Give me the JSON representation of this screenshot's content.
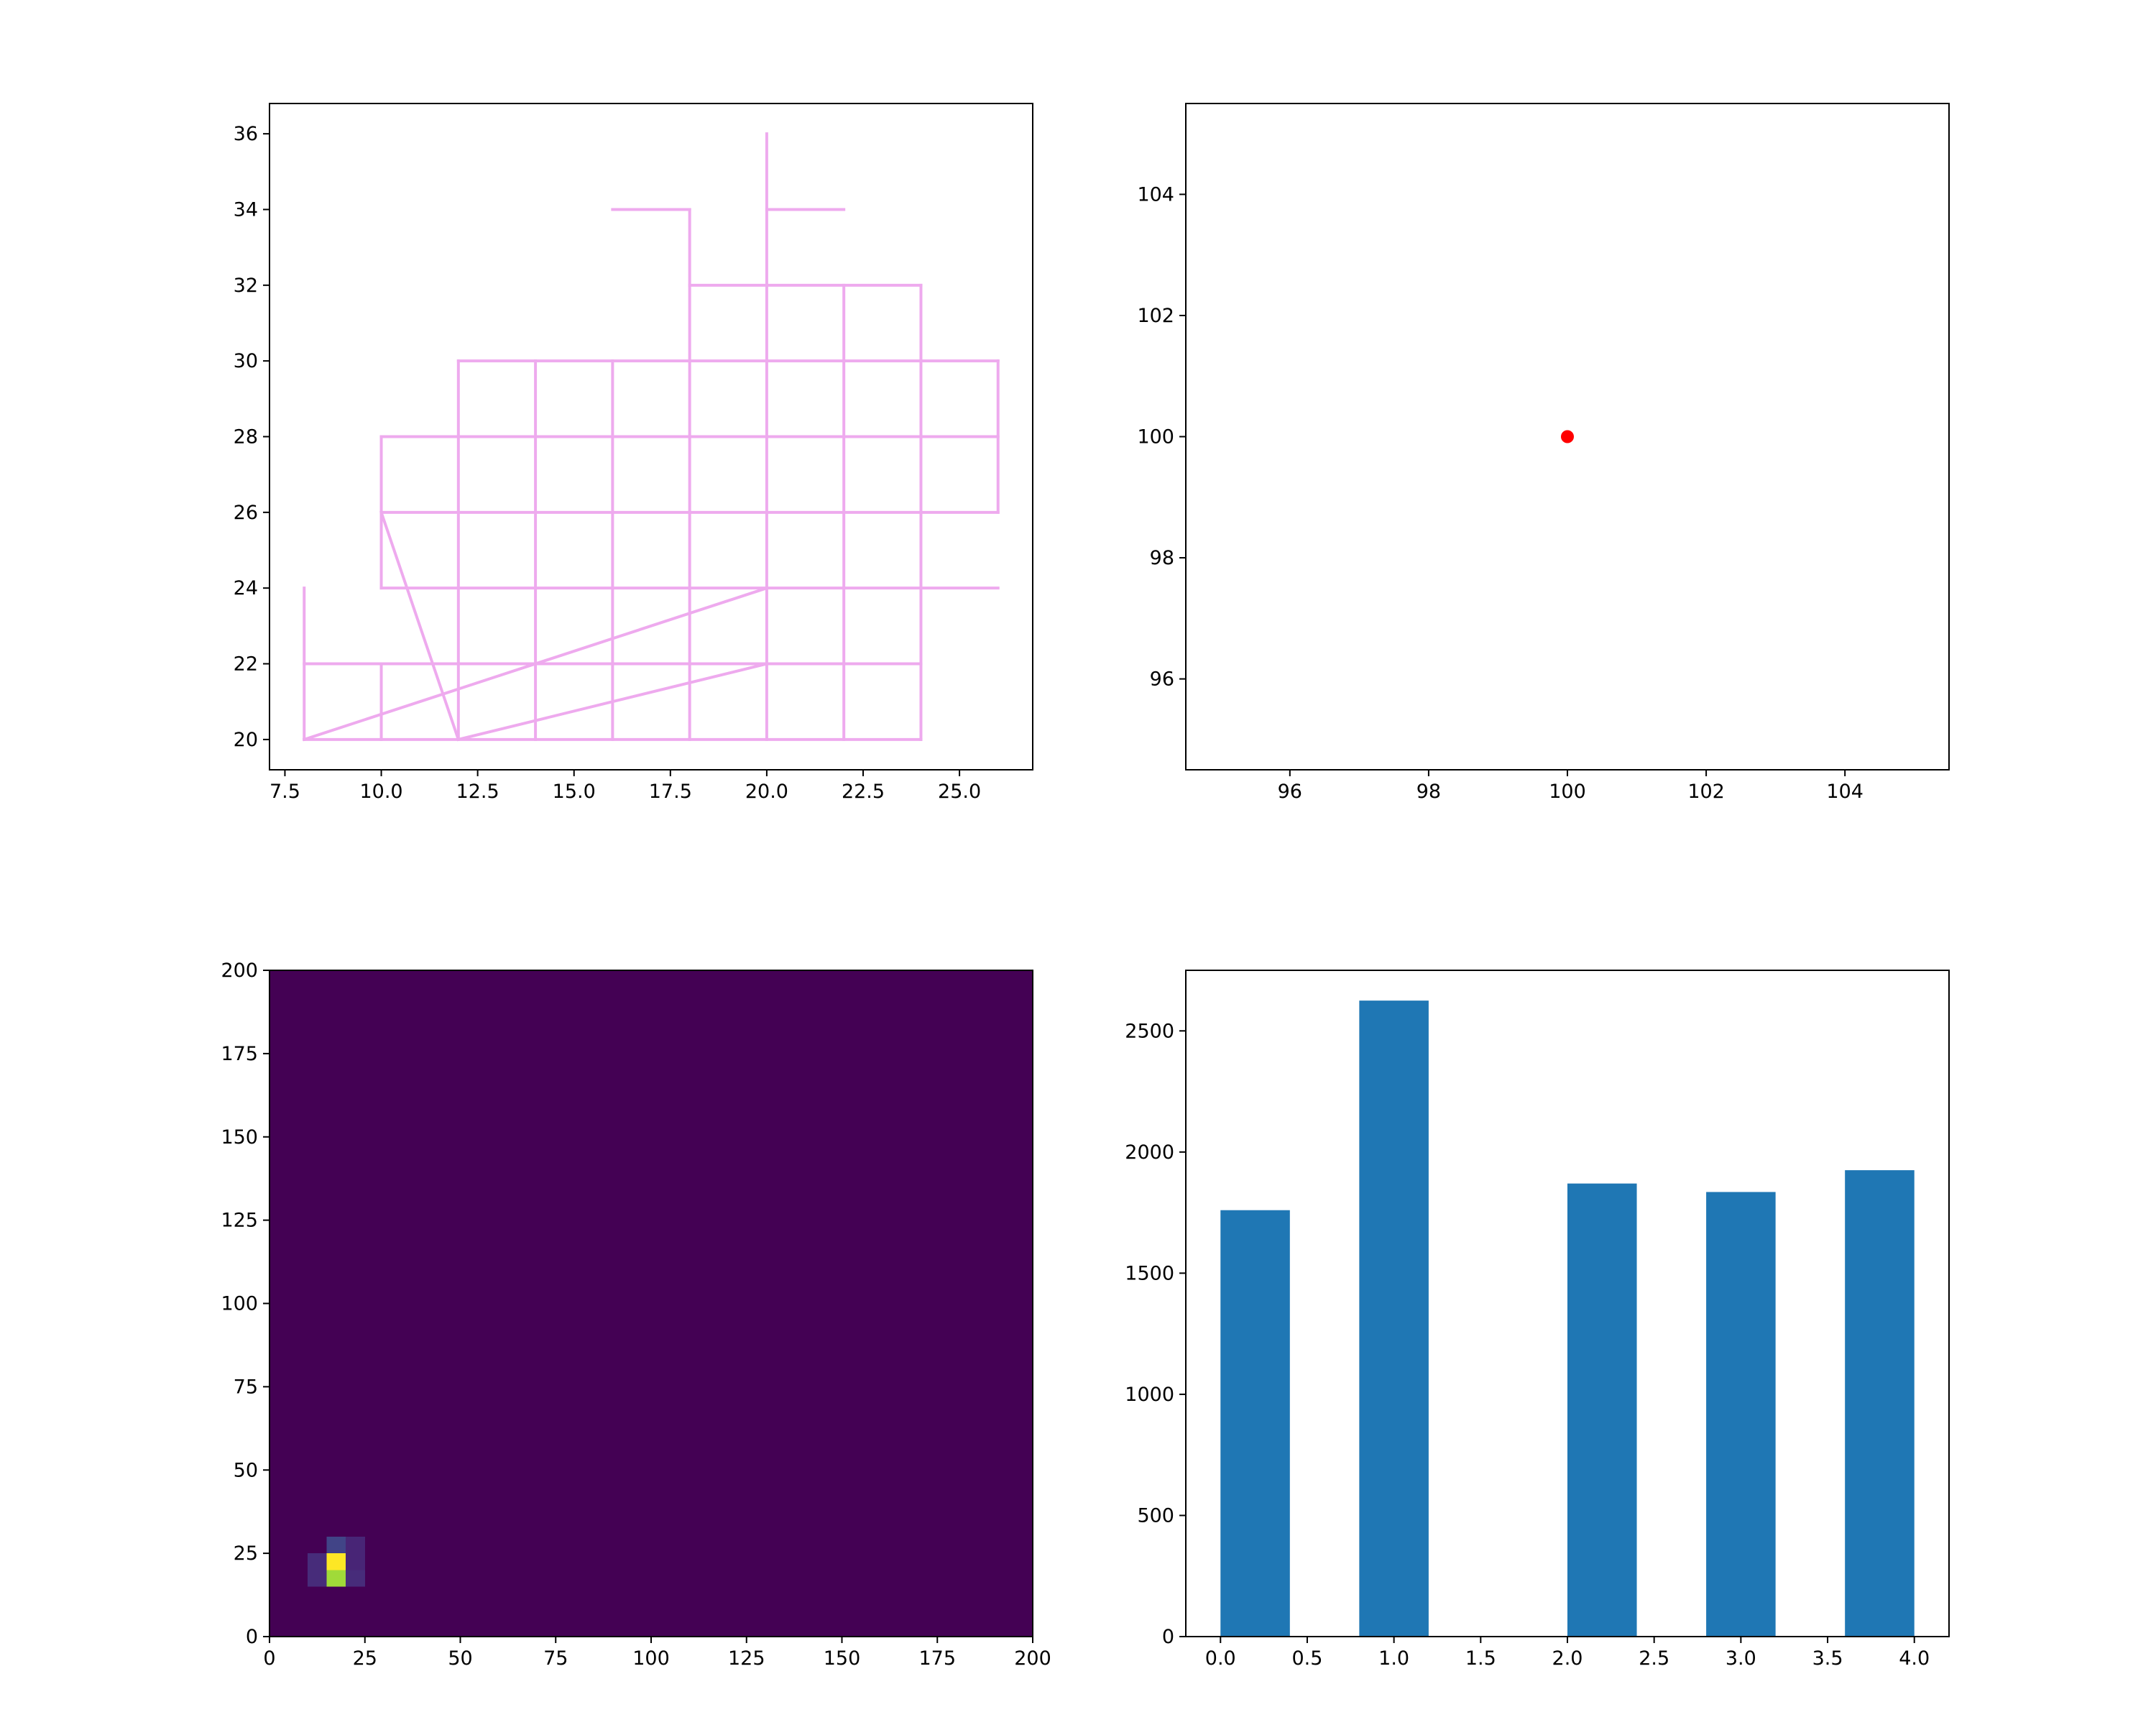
{
  "chart_data": [
    {
      "type": "line",
      "xlim": [
        7.1,
        26.9
      ],
      "ylim": [
        19.2,
        36.8
      ],
      "x_ticks": [
        "7.5",
        "10.0",
        "12.5",
        "15.0",
        "17.5",
        "20.0",
        "22.5",
        "25.0"
      ],
      "x_tick_values": [
        7.5,
        10.0,
        12.5,
        15.0,
        17.5,
        20.0,
        22.5,
        25.0
      ],
      "y_ticks": [
        "20",
        "22",
        "24",
        "26",
        "28",
        "30",
        "32",
        "34",
        "36"
      ],
      "y_tick_values": [
        20,
        22,
        24,
        26,
        28,
        30,
        32,
        34,
        36
      ],
      "grid": false,
      "color": "#eeaaee",
      "segments": [
        [
          [
            8,
            24
          ],
          [
            8,
            20
          ]
        ],
        [
          [
            8,
            22
          ],
          [
            24,
            22
          ]
        ],
        [
          [
            8,
            20
          ],
          [
            24,
            20
          ]
        ],
        [
          [
            8,
            20
          ],
          [
            20,
            24
          ]
        ],
        [
          [
            12,
            20
          ],
          [
            20,
            22
          ]
        ],
        [
          [
            10,
            26
          ],
          [
            12,
            20
          ]
        ],
        [
          [
            10,
            22
          ],
          [
            10,
            20
          ]
        ],
        [
          [
            10,
            28
          ],
          [
            10,
            24
          ]
        ],
        [
          [
            10,
            24
          ],
          [
            26,
            24
          ]
        ],
        [
          [
            10,
            26
          ],
          [
            26,
            26
          ]
        ],
        [
          [
            10,
            28
          ],
          [
            26,
            28
          ]
        ],
        [
          [
            12,
            30
          ],
          [
            26,
            30
          ]
        ],
        [
          [
            26,
            30
          ],
          [
            26,
            26
          ]
        ],
        [
          [
            12,
            30
          ],
          [
            12,
            20
          ]
        ],
        [
          [
            14,
            30
          ],
          [
            14,
            20
          ]
        ],
        [
          [
            16,
            30
          ],
          [
            16,
            20
          ]
        ],
        [
          [
            18,
            34
          ],
          [
            18,
            20
          ]
        ],
        [
          [
            20,
            36
          ],
          [
            20,
            20
          ]
        ],
        [
          [
            22,
            32
          ],
          [
            22,
            20
          ]
        ],
        [
          [
            24,
            32
          ],
          [
            24,
            20
          ]
        ],
        [
          [
            18,
            32
          ],
          [
            24,
            32
          ]
        ],
        [
          [
            16,
            34
          ],
          [
            18,
            34
          ]
        ],
        [
          [
            20,
            34
          ],
          [
            22,
            34
          ]
        ]
      ]
    },
    {
      "type": "scatter",
      "xlim": [
        94.5,
        105.5
      ],
      "ylim": [
        94.5,
        105.5
      ],
      "x_ticks": [
        "96",
        "98",
        "100",
        "102",
        "104"
      ],
      "x_tick_values": [
        96,
        98,
        100,
        102,
        104
      ],
      "y_ticks": [
        "96",
        "98",
        "100",
        "102",
        "104"
      ],
      "y_tick_values": [
        96,
        98,
        100,
        102,
        104
      ],
      "grid": false,
      "points": [
        {
          "x": 100,
          "y": 100,
          "color": "#ff0000"
        }
      ]
    },
    {
      "type": "heatmap",
      "xlim": [
        0,
        200
      ],
      "ylim": [
        0,
        200
      ],
      "x_ticks": [
        "0",
        "25",
        "50",
        "75",
        "100",
        "125",
        "150",
        "175",
        "200"
      ],
      "x_tick_values": [
        0,
        25,
        50,
        75,
        100,
        125,
        150,
        175,
        200
      ],
      "y_ticks": [
        "0",
        "25",
        "50",
        "75",
        "100",
        "125",
        "150",
        "175",
        "200"
      ],
      "y_tick_values": [
        0,
        25,
        50,
        75,
        100,
        125,
        150,
        175,
        200
      ],
      "background_color": "#440154",
      "cell_size": 5,
      "cells": [
        {
          "x": 10,
          "y": 15,
          "color": "#472c7a"
        },
        {
          "x": 15,
          "y": 15,
          "color": "#a0da39"
        },
        {
          "x": 20,
          "y": 15,
          "color": "#472c7a"
        },
        {
          "x": 10,
          "y": 20,
          "color": "#472c7a"
        },
        {
          "x": 15,
          "y": 20,
          "color": "#fde725"
        },
        {
          "x": 20,
          "y": 20,
          "color": "#482576"
        },
        {
          "x": 15,
          "y": 25,
          "color": "#414487"
        },
        {
          "x": 20,
          "y": 25,
          "color": "#482576"
        }
      ]
    },
    {
      "type": "bar",
      "xlim": [
        -0.2,
        4.2
      ],
      "ylim": [
        0,
        2750
      ],
      "x_ticks": [
        "0.0",
        "0.5",
        "1.0",
        "1.5",
        "2.0",
        "2.5",
        "3.0",
        "3.5",
        "4.0"
      ],
      "x_tick_values": [
        0,
        0.5,
        1.0,
        1.5,
        2.0,
        2.5,
        3.0,
        3.5,
        4.0
      ],
      "y_ticks": [
        "0",
        "500",
        "1000",
        "1500",
        "2000",
        "2500"
      ],
      "y_tick_values": [
        0,
        500,
        1000,
        1500,
        2000,
        2500
      ],
      "grid": false,
      "color": "#1f77b4",
      "bar_width": 0.4,
      "bars": [
        {
          "left": 0.0,
          "value": 1760
        },
        {
          "left": 0.8,
          "value": 2625
        },
        {
          "left": 2.0,
          "value": 1870
        },
        {
          "left": 2.8,
          "value": 1835
        },
        {
          "left": 3.6,
          "value": 1925
        }
      ]
    }
  ]
}
